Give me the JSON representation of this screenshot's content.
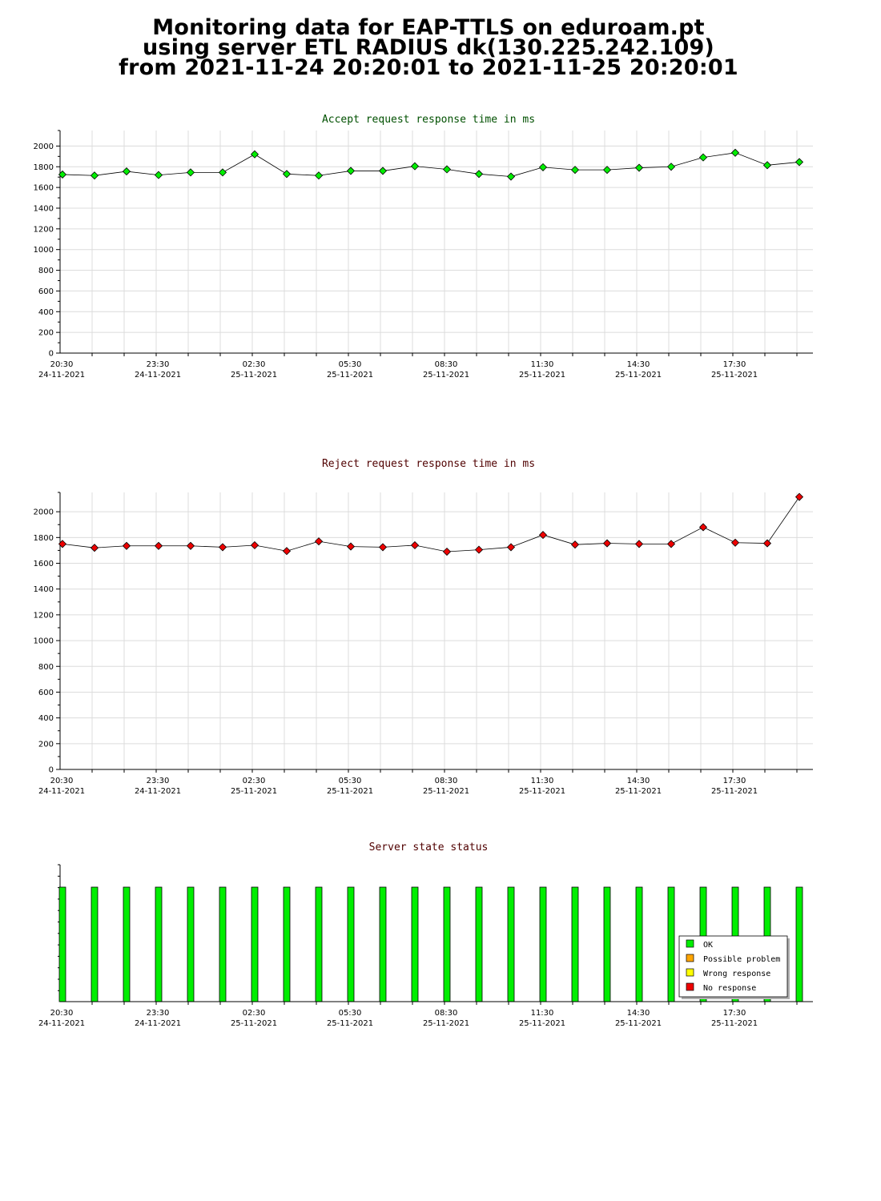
{
  "page": {
    "title_lines": [
      "Monitoring data for EAP-TTLS on eduroam.pt",
      "using server ETL RADIUS dk(130.225.242.109)",
      "from 2021-11-24 20:20:01 to 2021-11-25 20:20:01"
    ]
  },
  "colors": {
    "accept_title": "#005000",
    "reject_title": "#500000",
    "status_title": "#500000",
    "accept_marker": "#00ee00",
    "reject_marker": "#ee0000",
    "ok": "#00ee00",
    "possible_problem": "#ffa500",
    "wrong_response": "#ffff00",
    "no_response": "#ee0000",
    "grid": "#dcdcdc"
  },
  "x_axis": {
    "tick_times": [
      "20:30",
      "23:30",
      "02:30",
      "05:30",
      "08:30",
      "11:30",
      "14:30",
      "17:30"
    ],
    "tick_dates": [
      "24-11-2021",
      "24-11-2021",
      "25-11-2021",
      "25-11-2021",
      "25-11-2021",
      "25-11-2021",
      "25-11-2021",
      "25-11-2021"
    ]
  },
  "chart_data": [
    {
      "type": "line",
      "title": "Accept request response time in ms",
      "ylim": [
        0,
        2150
      ],
      "yticks": [
        "0",
        "200",
        "400",
        "600",
        "800",
        "1000",
        "1200",
        "1400",
        "1600",
        "1800",
        "2000"
      ],
      "grid": true,
      "x": [
        "20:20",
        "21:20",
        "22:20",
        "23:20",
        "00:20",
        "01:20",
        "02:20",
        "03:20",
        "04:20",
        "05:20",
        "06:20",
        "07:20",
        "08:20",
        "09:20",
        "10:20",
        "11:20",
        "12:20",
        "13:20",
        "14:20",
        "15:20",
        "16:20",
        "17:20",
        "18:20",
        "19:20"
      ],
      "values": [
        1725,
        1715,
        1755,
        1720,
        1745,
        1745,
        1920,
        1730,
        1715,
        1760,
        1760,
        1805,
        1775,
        1730,
        1705,
        1795,
        1770,
        1770,
        1790,
        1800,
        1890,
        1935,
        1815,
        1845
      ]
    },
    {
      "type": "line",
      "title": "Reject request response time in ms",
      "ylim": [
        0,
        2150
      ],
      "yticks": [
        "0",
        "200",
        "400",
        "600",
        "800",
        "1000",
        "1200",
        "1400",
        "1600",
        "1800",
        "2000"
      ],
      "grid": true,
      "x": [
        "20:20",
        "21:20",
        "22:20",
        "23:20",
        "00:20",
        "01:20",
        "02:20",
        "03:20",
        "04:20",
        "05:20",
        "06:20",
        "07:20",
        "08:20",
        "09:20",
        "10:20",
        "11:20",
        "12:20",
        "13:20",
        "14:20",
        "15:20",
        "16:20",
        "17:20",
        "18:20",
        "19:20"
      ],
      "values": [
        1750,
        1720,
        1735,
        1735,
        1735,
        1725,
        1740,
        1695,
        1770,
        1730,
        1725,
        1740,
        1690,
        1705,
        1725,
        1820,
        1745,
        1755,
        1750,
        1750,
        1880,
        1760,
        1755,
        2115
      ]
    },
    {
      "type": "bar",
      "title": "Server state status",
      "x": [
        "20:20",
        "21:20",
        "22:20",
        "23:20",
        "00:20",
        "01:20",
        "02:20",
        "03:20",
        "04:20",
        "05:20",
        "06:20",
        "07:20",
        "08:20",
        "09:20",
        "10:20",
        "11:20",
        "12:20",
        "13:20",
        "14:20",
        "15:20",
        "16:20",
        "17:20",
        "18:20",
        "19:20"
      ],
      "states": [
        "ok",
        "ok",
        "ok",
        "ok",
        "ok",
        "ok",
        "ok",
        "ok",
        "ok",
        "ok",
        "ok",
        "ok",
        "ok",
        "ok",
        "ok",
        "ok",
        "ok",
        "ok",
        "ok",
        "ok",
        "ok",
        "ok",
        "ok",
        "ok"
      ],
      "legend_position": "bottom-right",
      "legend": [
        {
          "key": "ok",
          "label": "OK"
        },
        {
          "key": "possible_problem",
          "label": "Possible problem"
        },
        {
          "key": "wrong_response",
          "label": "Wrong response"
        },
        {
          "key": "no_response",
          "label": "No response"
        }
      ]
    }
  ]
}
